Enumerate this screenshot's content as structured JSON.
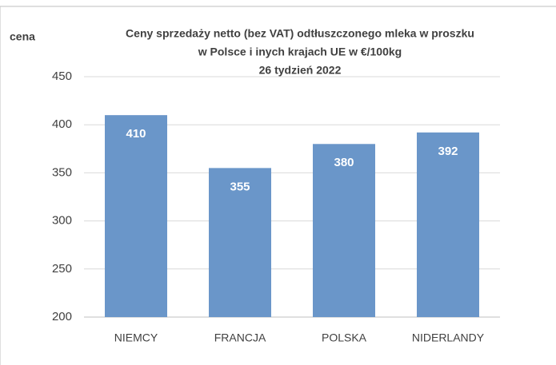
{
  "chart_data": {
    "type": "bar",
    "title": [
      "Ceny sprzedaży netto  (bez VAT) odtłuszczonego mleka w proszku",
      "w Polsce i inych krajach UE w €/100kg",
      "26  tydzień 2022"
    ],
    "y_label": "cena",
    "categories": [
      "NIEMCY",
      "FRANCJA",
      "POLSKA",
      "NIDERLANDY"
    ],
    "values": [
      410,
      355,
      380,
      392
    ],
    "color": "#6a96c9",
    "ylim": [
      200,
      450
    ],
    "yticks": [
      200,
      250,
      300,
      350,
      400,
      450
    ],
    "grid": true
  }
}
